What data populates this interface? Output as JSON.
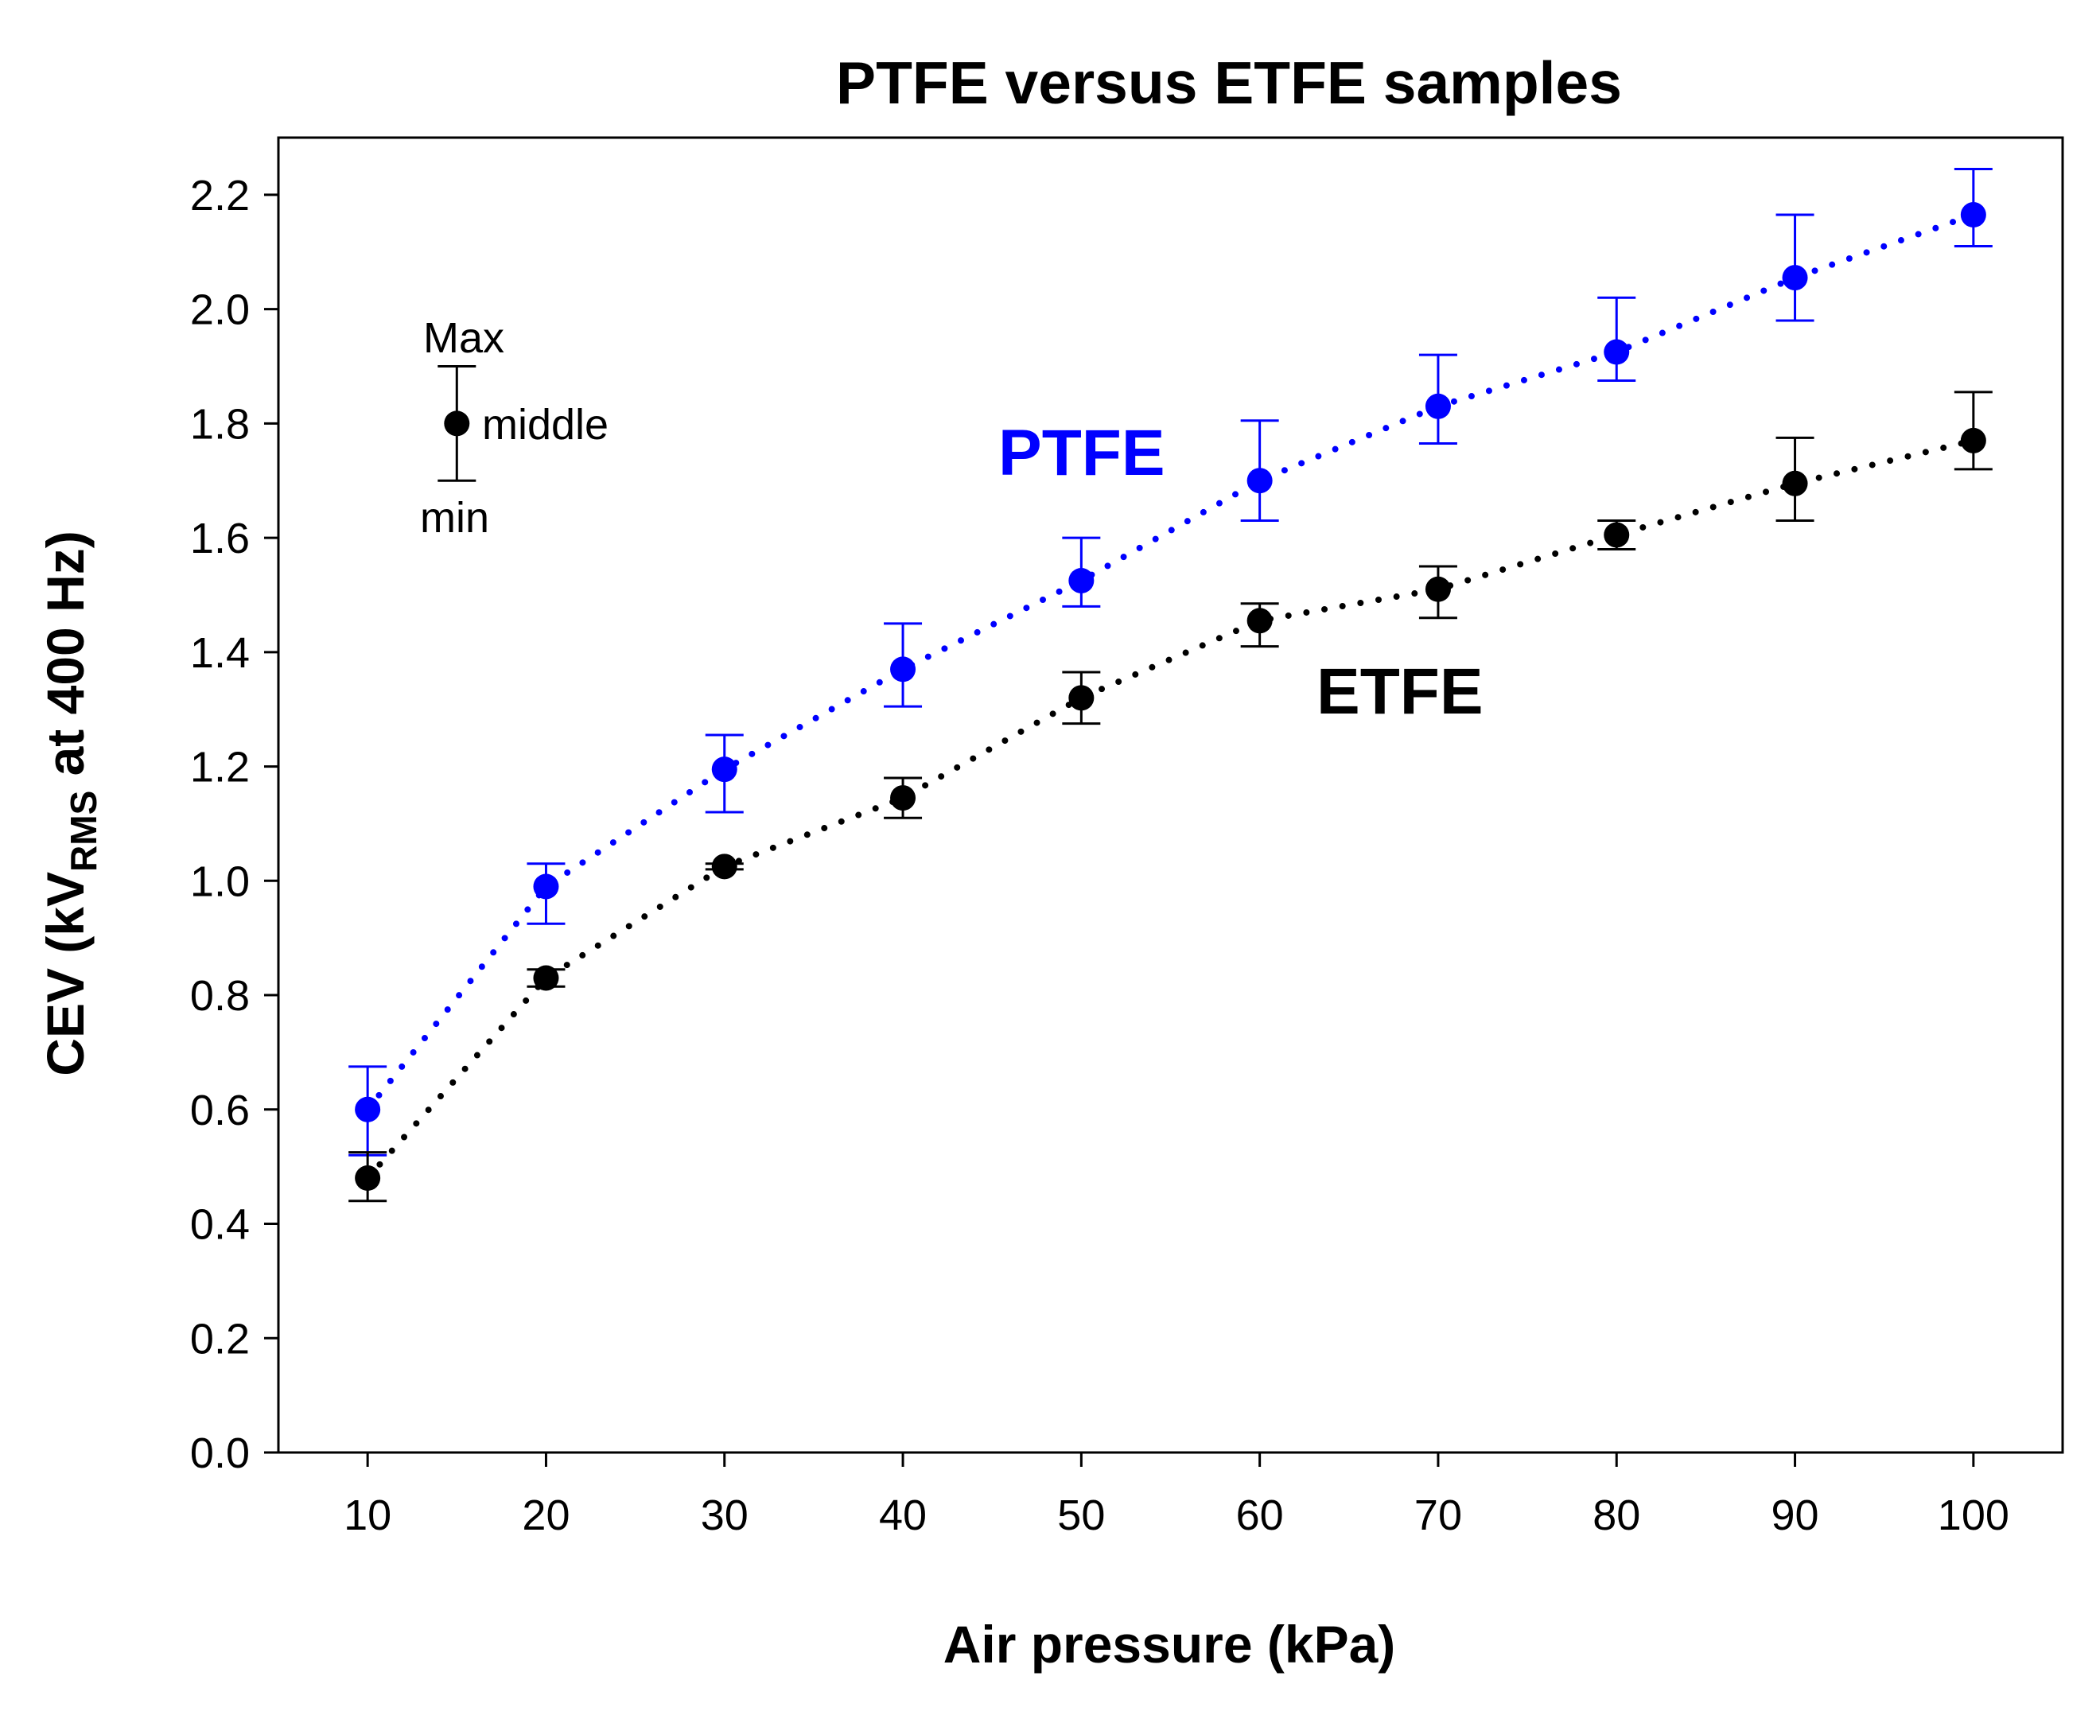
{
  "chart_data": {
    "type": "scatter",
    "title": "PTFE versus ETFE samples",
    "xlabel": "Air pressure (kPa)",
    "ylabel": {
      "prefix": "CEV (kV",
      "subscript": "RMS",
      "suffix": " at 400 Hz)"
    },
    "x": [
      10,
      20,
      30,
      40,
      50,
      60,
      70,
      80,
      90,
      100
    ],
    "xlim": [
      5,
      105
    ],
    "ylim": [
      0.0,
      2.3
    ],
    "x_ticks": [
      10,
      20,
      30,
      40,
      50,
      60,
      70,
      80,
      90,
      100
    ],
    "y_ticks": [
      "0.0",
      "0.2",
      "0.4",
      "0.6",
      "0.8",
      "1.0",
      "1.2",
      "1.4",
      "1.6",
      "1.8",
      "2.0",
      "2.2"
    ],
    "grid": false,
    "series": [
      {
        "name": "PTFE",
        "color": "#0000ff",
        "line_style": "dotted",
        "values": [
          0.6,
          0.99,
          1.195,
          1.37,
          1.525,
          1.7,
          1.83,
          1.925,
          2.055,
          2.165
        ],
        "min": [
          0.52,
          0.925,
          1.12,
          1.305,
          1.48,
          1.63,
          1.765,
          1.875,
          1.98,
          2.11
        ],
        "max": [
          0.675,
          1.03,
          1.255,
          1.45,
          1.6,
          1.805,
          1.92,
          2.02,
          2.165,
          2.245
        ]
      },
      {
        "name": "ETFE",
        "color": "#000000",
        "line_style": "dotted",
        "values": [
          0.48,
          0.83,
          1.025,
          1.145,
          1.32,
          1.455,
          1.51,
          1.605,
          1.695,
          1.77
        ],
        "min": [
          0.44,
          0.815,
          1.02,
          1.11,
          1.275,
          1.41,
          1.46,
          1.58,
          1.63,
          1.72
        ],
        "max": [
          0.525,
          0.845,
          1.03,
          1.18,
          1.365,
          1.485,
          1.55,
          1.63,
          1.775,
          1.855
        ]
      }
    ],
    "annotations": {
      "series_labels": {
        "PTFE": {
          "text": "PTFE",
          "color": "#0000ff"
        },
        "ETFE": {
          "text": "ETFE",
          "color": "#000000"
        }
      },
      "legend": {
        "placement": "top-left",
        "max_label": "Max",
        "middle_label": "middle",
        "min_label": "min",
        "sample_value": 1.8,
        "sample_min": 1.7,
        "sample_max": 1.9,
        "sample_x": 15
      }
    }
  }
}
